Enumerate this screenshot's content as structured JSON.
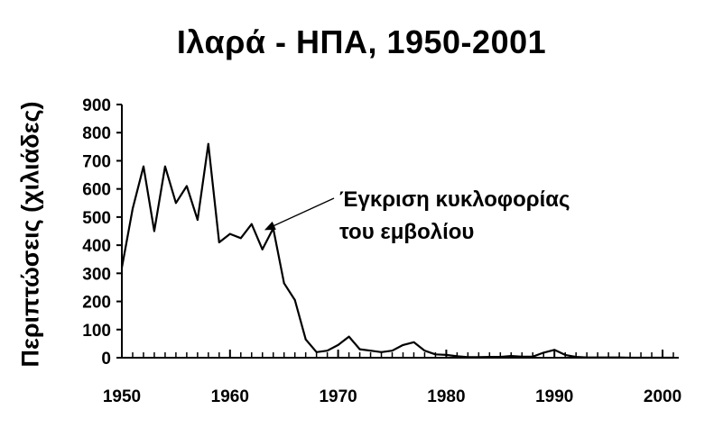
{
  "chart_data": {
    "type": "line",
    "title": "Ιλαρά - ΗΠΑ, 1950-2001",
    "xlabel": "",
    "ylabel": "Περιπτώσεις (χιλιάδες)",
    "xlim": [
      1950,
      2001
    ],
    "ylim": [
      0,
      900
    ],
    "xticks": [
      1950,
      1960,
      1970,
      1980,
      1990,
      2000
    ],
    "yticks": [
      0,
      100,
      200,
      300,
      400,
      500,
      600,
      700,
      800,
      900
    ],
    "grid": false,
    "series": [
      {
        "x": [
          1950,
          1951,
          1952,
          1953,
          1954,
          1955,
          1956,
          1957,
          1958,
          1959,
          1960,
          1961,
          1962,
          1963,
          1964,
          1965,
          1966,
          1967,
          1968,
          1969,
          1970,
          1971,
          1972,
          1973,
          1974,
          1975,
          1976,
          1977,
          1978,
          1979,
          1980,
          1981,
          1982,
          1983,
          1984,
          1985,
          1986,
          1987,
          1988,
          1989,
          1990,
          1991,
          1992,
          1993,
          1994,
          1995,
          1996,
          1997,
          1998,
          1999,
          2000,
          2001
        ],
        "values": [
          320,
          530,
          680,
          450,
          680,
          550,
          610,
          490,
          760,
          410,
          440,
          425,
          475,
          385,
          460,
          265,
          205,
          65,
          20,
          25,
          45,
          75,
          30,
          25,
          20,
          25,
          45,
          55,
          25,
          12,
          10,
          5,
          2,
          2,
          3,
          3,
          6,
          4,
          4,
          18,
          28,
          10,
          3,
          1,
          1,
          1,
          1,
          0,
          0,
          0,
          0,
          0
        ]
      }
    ],
    "annotations": [
      {
        "lines": [
          "Έγκριση κυκλοφορίας",
          "του εμβολίου"
        ],
        "x": 1963,
        "y": 450
      }
    ]
  }
}
